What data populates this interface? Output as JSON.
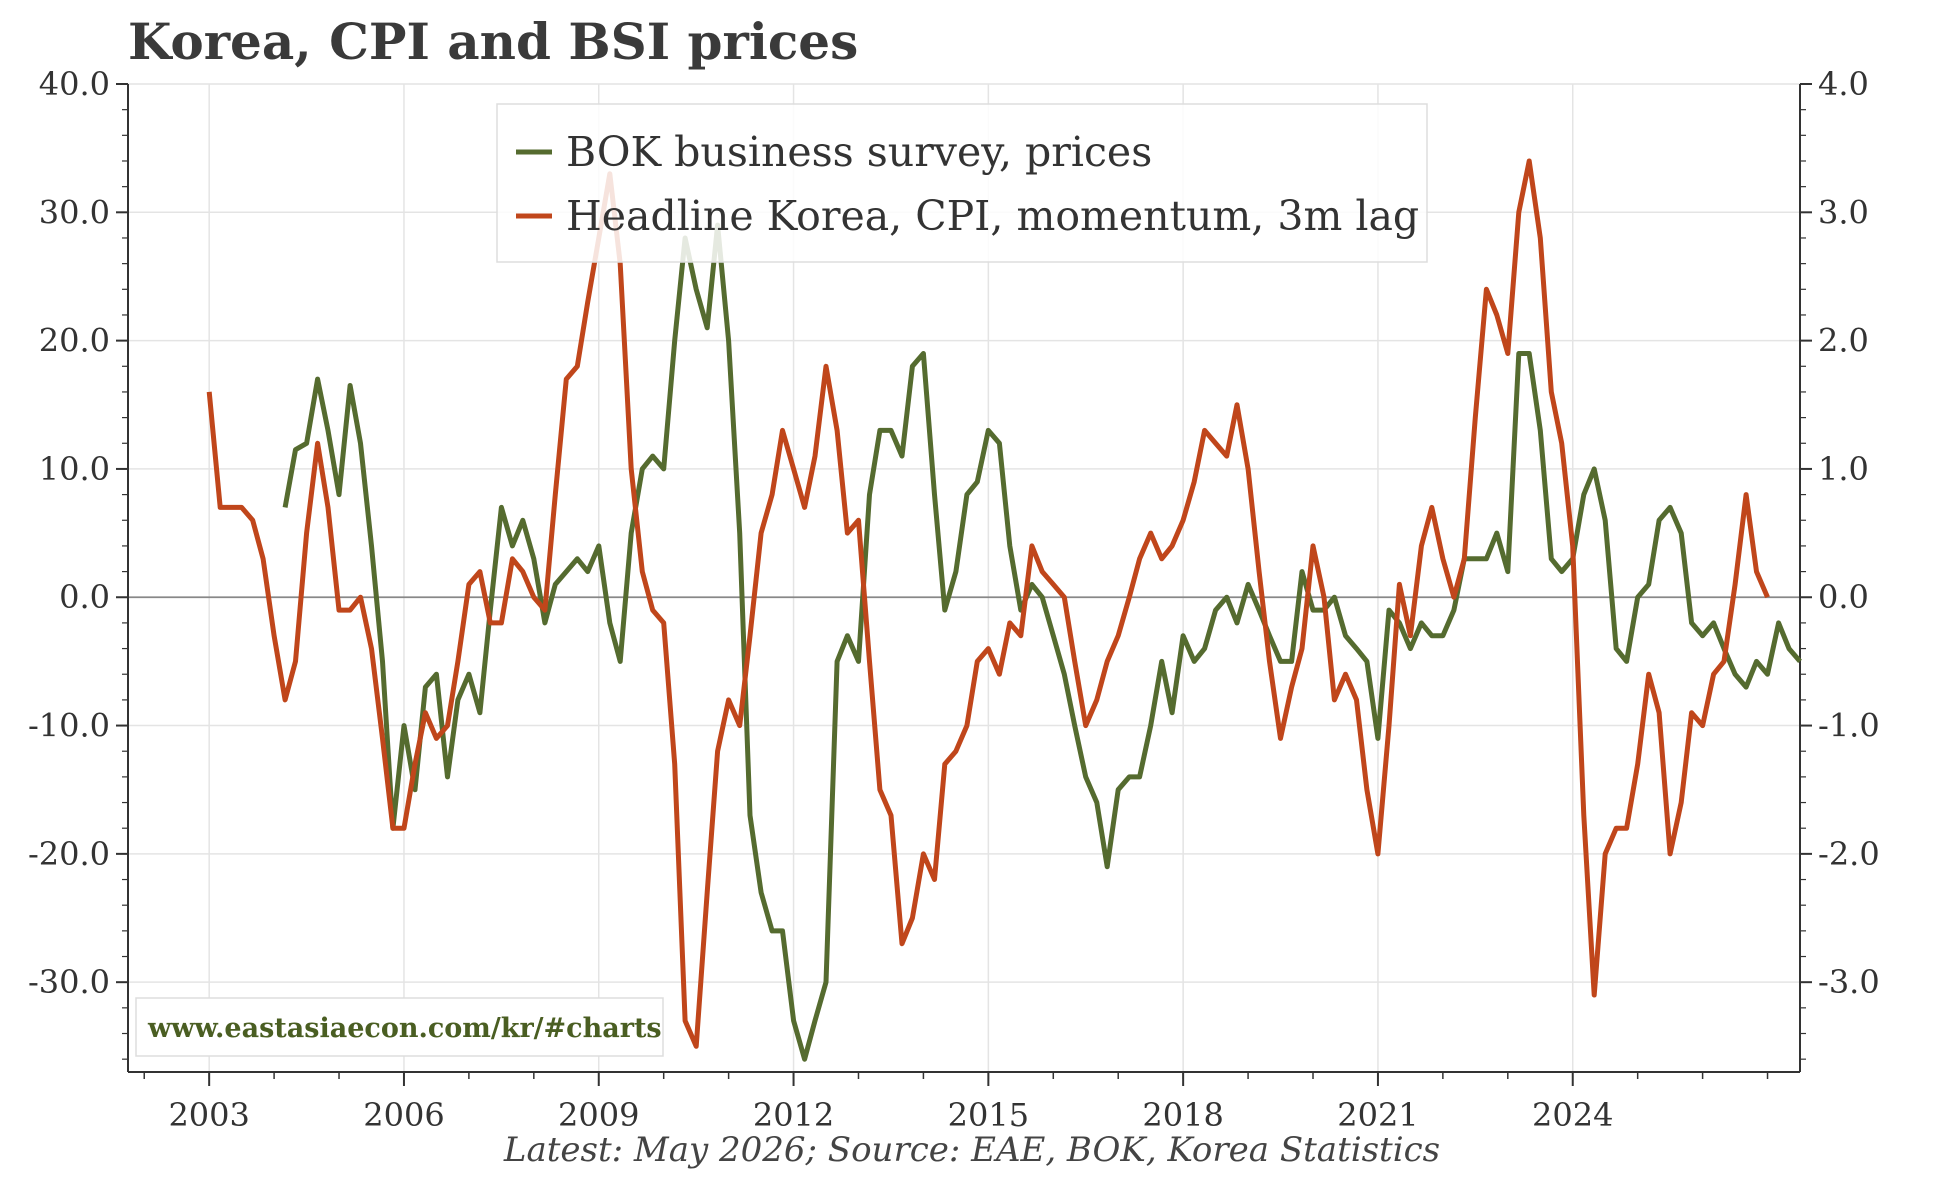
{
  "title": "Korea, CPI and BSI prices",
  "footer": "Latest: May 2026; Source: EAE, BOK, Korea Statistics",
  "watermark": "www.eastasiaecon.com/kr/#charts",
  "colors": {
    "bsi": "#556b2f",
    "cpi": "#c0461b",
    "grid": "#e4e4e4",
    "zero": "#888888",
    "axis": "#333333"
  },
  "chart_data": {
    "type": "line",
    "title": "Korea, CPI and BSI prices",
    "x_ticks": [
      "2003",
      "2006",
      "2009",
      "2012",
      "2015",
      "2018",
      "2021",
      "2024"
    ],
    "left_ticks": [
      "-30.0",
      "-20.0",
      "-10.0",
      "0.0",
      "10.0",
      "20.0",
      "30.0",
      "40.0"
    ],
    "right_ticks": [
      "-3.0",
      "-2.0",
      "-1.0",
      "0.0",
      "1.0",
      "2.0",
      "3.0",
      "4.0"
    ],
    "xlim": [
      2001.75,
      2027.5
    ],
    "ylim_left": [
      -37,
      40
    ],
    "ylim_right": [
      -3.7,
      4.0
    ],
    "grid": true,
    "legend_position": "top-center",
    "series": [
      {
        "name": "BOK business survey, prices",
        "axis": "left",
        "points": [
          [
            2004.17,
            7
          ],
          [
            2004.33,
            11.5
          ],
          [
            2004.5,
            12
          ],
          [
            2004.67,
            17
          ],
          [
            2004.83,
            13
          ],
          [
            2005.0,
            8
          ],
          [
            2005.17,
            16.5
          ],
          [
            2005.33,
            12
          ],
          [
            2005.5,
            4
          ],
          [
            2005.67,
            -5
          ],
          [
            2005.83,
            -18
          ],
          [
            2006.0,
            -10
          ],
          [
            2006.17,
            -15
          ],
          [
            2006.33,
            -7
          ],
          [
            2006.5,
            -6
          ],
          [
            2006.67,
            -14
          ],
          [
            2006.83,
            -8
          ],
          [
            2007.0,
            -6
          ],
          [
            2007.17,
            -9
          ],
          [
            2007.33,
            -1
          ],
          [
            2007.5,
            7
          ],
          [
            2007.67,
            4
          ],
          [
            2007.83,
            6
          ],
          [
            2008.0,
            3
          ],
          [
            2008.17,
            -2
          ],
          [
            2008.33,
            1
          ],
          [
            2008.5,
            2
          ],
          [
            2008.67,
            3
          ],
          [
            2008.83,
            2
          ],
          [
            2009.0,
            4
          ],
          [
            2009.17,
            -2
          ],
          [
            2009.33,
            -5
          ],
          [
            2009.5,
            5
          ],
          [
            2009.67,
            10
          ],
          [
            2009.83,
            11
          ],
          [
            2010.0,
            10
          ],
          [
            2010.17,
            20
          ],
          [
            2010.33,
            28
          ],
          [
            2010.5,
            24
          ],
          [
            2010.67,
            21
          ],
          [
            2010.83,
            29
          ],
          [
            2011.0,
            20
          ],
          [
            2011.17,
            5
          ],
          [
            2011.33,
            -17
          ],
          [
            2011.5,
            -23
          ],
          [
            2011.67,
            -26
          ],
          [
            2011.83,
            -26
          ],
          [
            2012.0,
            -33
          ],
          [
            2012.17,
            -36
          ],
          [
            2012.33,
            -33
          ],
          [
            2012.5,
            -30
          ],
          [
            2012.67,
            -5
          ],
          [
            2012.83,
            -3
          ],
          [
            2013.0,
            -5
          ],
          [
            2013.17,
            8
          ],
          [
            2013.33,
            13
          ],
          [
            2013.5,
            13
          ],
          [
            2013.67,
            11
          ],
          [
            2013.83,
            18
          ],
          [
            2014.0,
            19
          ],
          [
            2014.17,
            8
          ],
          [
            2014.33,
            -1
          ],
          [
            2014.5,
            2
          ],
          [
            2014.67,
            8
          ],
          [
            2014.83,
            9
          ],
          [
            2015.0,
            13
          ],
          [
            2015.17,
            12
          ],
          [
            2015.33,
            4
          ],
          [
            2015.5,
            -1
          ],
          [
            2015.67,
            1
          ],
          [
            2015.83,
            0
          ],
          [
            2016.0,
            -3
          ],
          [
            2016.17,
            -6
          ],
          [
            2016.33,
            -10
          ],
          [
            2016.5,
            -14
          ],
          [
            2016.67,
            -16
          ],
          [
            2016.83,
            -21
          ],
          [
            2017.0,
            -15
          ],
          [
            2017.17,
            -14
          ],
          [
            2017.33,
            -14
          ],
          [
            2017.5,
            -10
          ],
          [
            2017.67,
            -5
          ],
          [
            2017.83,
            -9
          ],
          [
            2018.0,
            -3
          ],
          [
            2018.17,
            -5
          ],
          [
            2018.33,
            -4
          ],
          [
            2018.5,
            -1
          ],
          [
            2018.67,
            0
          ],
          [
            2018.83,
            -2
          ],
          [
            2019.0,
            1
          ],
          [
            2019.17,
            -1
          ],
          [
            2019.33,
            -3
          ],
          [
            2019.5,
            -5
          ],
          [
            2019.67,
            -5
          ],
          [
            2019.83,
            2
          ],
          [
            2020.0,
            -1
          ],
          [
            2020.17,
            -1
          ],
          [
            2020.33,
            0
          ],
          [
            2020.5,
            -3
          ],
          [
            2020.67,
            -4
          ],
          [
            2020.83,
            -5
          ],
          [
            2021.0,
            -11
          ],
          [
            2021.17,
            -1
          ],
          [
            2021.33,
            -2
          ],
          [
            2021.5,
            -4
          ],
          [
            2021.67,
            -2
          ],
          [
            2021.83,
            -3
          ],
          [
            2022.0,
            -3
          ],
          [
            2022.17,
            -1
          ],
          [
            2022.33,
            3
          ],
          [
            2022.5,
            3
          ],
          [
            2022.67,
            3
          ],
          [
            2022.83,
            5
          ],
          [
            2023.0,
            2
          ],
          [
            2023.17,
            19
          ],
          [
            2023.33,
            19
          ],
          [
            2023.5,
            13
          ],
          [
            2023.67,
            3
          ],
          [
            2023.83,
            2
          ],
          [
            2024.0,
            3
          ],
          [
            2024.17,
            8
          ],
          [
            2024.33,
            10
          ],
          [
            2024.5,
            6
          ],
          [
            2024.67,
            -4
          ],
          [
            2024.83,
            -5
          ],
          [
            2025.0,
            0
          ],
          [
            2025.17,
            1
          ],
          [
            2025.33,
            6
          ],
          [
            2025.5,
            7
          ],
          [
            2025.67,
            5
          ],
          [
            2025.83,
            -2
          ],
          [
            2026.0,
            -3
          ],
          [
            2026.17,
            -2
          ],
          [
            2026.33,
            -4
          ],
          [
            2026.5,
            -6
          ],
          [
            2026.67,
            -7
          ],
          [
            2026.83,
            -5
          ],
          [
            2027.0,
            -6
          ],
          [
            2027.17,
            -2
          ],
          [
            2027.33,
            -4
          ],
          [
            2027.5,
            -5
          ]
        ]
      },
      {
        "name": "Headline Korea, CPI, momentum, 3m lag",
        "axis": "right",
        "points": [
          [
            2003.0,
            1.6
          ],
          [
            2003.17,
            0.7
          ],
          [
            2003.33,
            0.7
          ],
          [
            2003.5,
            0.7
          ],
          [
            2003.67,
            0.6
          ],
          [
            2003.83,
            0.3
          ],
          [
            2004.0,
            -0.3
          ],
          [
            2004.17,
            -0.8
          ],
          [
            2004.33,
            -0.5
          ],
          [
            2004.5,
            0.5
          ],
          [
            2004.67,
            1.2
          ],
          [
            2004.83,
            0.7
          ],
          [
            2005.0,
            -0.1
          ],
          [
            2005.17,
            -0.1
          ],
          [
            2005.33,
            0.0
          ],
          [
            2005.5,
            -0.4
          ],
          [
            2005.67,
            -1.1
          ],
          [
            2005.83,
            -1.8
          ],
          [
            2006.0,
            -1.8
          ],
          [
            2006.17,
            -1.3
          ],
          [
            2006.33,
            -0.9
          ],
          [
            2006.5,
            -1.1
          ],
          [
            2006.67,
            -1.0
          ],
          [
            2006.83,
            -0.5
          ],
          [
            2007.0,
            0.1
          ],
          [
            2007.17,
            0.2
          ],
          [
            2007.33,
            -0.2
          ],
          [
            2007.5,
            -0.2
          ],
          [
            2007.67,
            0.3
          ],
          [
            2007.83,
            0.2
          ],
          [
            2008.0,
            0.0
          ],
          [
            2008.17,
            -0.1
          ],
          [
            2008.33,
            0.8
          ],
          [
            2008.5,
            1.7
          ],
          [
            2008.67,
            1.8
          ],
          [
            2008.83,
            2.3
          ],
          [
            2009.0,
            2.8
          ],
          [
            2009.17,
            3.3
          ],
          [
            2009.33,
            2.6
          ],
          [
            2009.5,
            1.0
          ],
          [
            2009.67,
            0.2
          ],
          [
            2009.83,
            -0.1
          ],
          [
            2010.0,
            -0.2
          ],
          [
            2010.17,
            -1.3
          ],
          [
            2010.33,
            -3.3
          ],
          [
            2010.5,
            -3.5
          ],
          [
            2010.67,
            -2.3
          ],
          [
            2010.83,
            -1.2
          ],
          [
            2011.0,
            -0.8
          ],
          [
            2011.17,
            -1.0
          ],
          [
            2011.33,
            -0.3
          ],
          [
            2011.5,
            0.5
          ],
          [
            2011.67,
            0.8
          ],
          [
            2011.83,
            1.3
          ],
          [
            2012.0,
            1.0
          ],
          [
            2012.17,
            0.7
          ],
          [
            2012.33,
            1.1
          ],
          [
            2012.5,
            1.8
          ],
          [
            2012.67,
            1.3
          ],
          [
            2012.83,
            0.5
          ],
          [
            2013.0,
            0.6
          ],
          [
            2013.17,
            -0.5
          ],
          [
            2013.33,
            -1.5
          ],
          [
            2013.5,
            -1.7
          ],
          [
            2013.67,
            -2.7
          ],
          [
            2013.83,
            -2.5
          ],
          [
            2014.0,
            -2.0
          ],
          [
            2014.17,
            -2.2
          ],
          [
            2014.33,
            -1.3
          ],
          [
            2014.5,
            -1.2
          ],
          [
            2014.67,
            -1.0
          ],
          [
            2014.83,
            -0.5
          ],
          [
            2015.0,
            -0.4
          ],
          [
            2015.17,
            -0.6
          ],
          [
            2015.33,
            -0.2
          ],
          [
            2015.5,
            -0.3
          ],
          [
            2015.67,
            0.4
          ],
          [
            2015.83,
            0.2
          ],
          [
            2016.0,
            0.1
          ],
          [
            2016.17,
            0.0
          ],
          [
            2016.33,
            -0.5
          ],
          [
            2016.5,
            -1.0
          ],
          [
            2016.67,
            -0.8
          ],
          [
            2016.83,
            -0.5
          ],
          [
            2017.0,
            -0.3
          ],
          [
            2017.17,
            0.0
          ],
          [
            2017.33,
            0.3
          ],
          [
            2017.5,
            0.5
          ],
          [
            2017.67,
            0.3
          ],
          [
            2017.83,
            0.4
          ],
          [
            2018.0,
            0.6
          ],
          [
            2018.17,
            0.9
          ],
          [
            2018.33,
            1.3
          ],
          [
            2018.5,
            1.2
          ],
          [
            2018.67,
            1.1
          ],
          [
            2018.83,
            1.5
          ],
          [
            2019.0,
            1.0
          ],
          [
            2019.17,
            0.2
          ],
          [
            2019.33,
            -0.5
          ],
          [
            2019.5,
            -1.1
          ],
          [
            2019.67,
            -0.7
          ],
          [
            2019.83,
            -0.4
          ],
          [
            2020.0,
            0.4
          ],
          [
            2020.17,
            0.0
          ],
          [
            2020.33,
            -0.8
          ],
          [
            2020.5,
            -0.6
          ],
          [
            2020.67,
            -0.8
          ],
          [
            2020.83,
            -1.5
          ],
          [
            2021.0,
            -2.0
          ],
          [
            2021.17,
            -1.0
          ],
          [
            2021.33,
            0.1
          ],
          [
            2021.5,
            -0.3
          ],
          [
            2021.67,
            0.4
          ],
          [
            2021.83,
            0.7
          ],
          [
            2022.0,
            0.3
          ],
          [
            2022.17,
            0.0
          ],
          [
            2022.33,
            0.3
          ],
          [
            2022.5,
            1.4
          ],
          [
            2022.67,
            2.4
          ],
          [
            2022.83,
            2.2
          ],
          [
            2023.0,
            1.9
          ],
          [
            2023.17,
            3.0
          ],
          [
            2023.33,
            3.4
          ],
          [
            2023.5,
            2.8
          ],
          [
            2023.67,
            1.6
          ],
          [
            2023.83,
            1.2
          ],
          [
            2024.0,
            0.4
          ],
          [
            2024.17,
            -1.7
          ],
          [
            2024.33,
            -3.1
          ],
          [
            2024.5,
            -2.0
          ],
          [
            2024.67,
            -1.8
          ],
          [
            2024.83,
            -1.8
          ],
          [
            2025.0,
            -1.3
          ],
          [
            2025.17,
            -0.6
          ],
          [
            2025.33,
            -0.9
          ],
          [
            2025.5,
            -2.0
          ],
          [
            2025.67,
            -1.6
          ],
          [
            2025.83,
            -0.9
          ],
          [
            2026.0,
            -1.0
          ],
          [
            2026.17,
            -0.6
          ],
          [
            2026.33,
            -0.5
          ],
          [
            2026.5,
            0.1
          ],
          [
            2026.67,
            0.8
          ],
          [
            2026.83,
            0.2
          ],
          [
            2027.0,
            0.0
          ]
        ]
      }
    ]
  }
}
